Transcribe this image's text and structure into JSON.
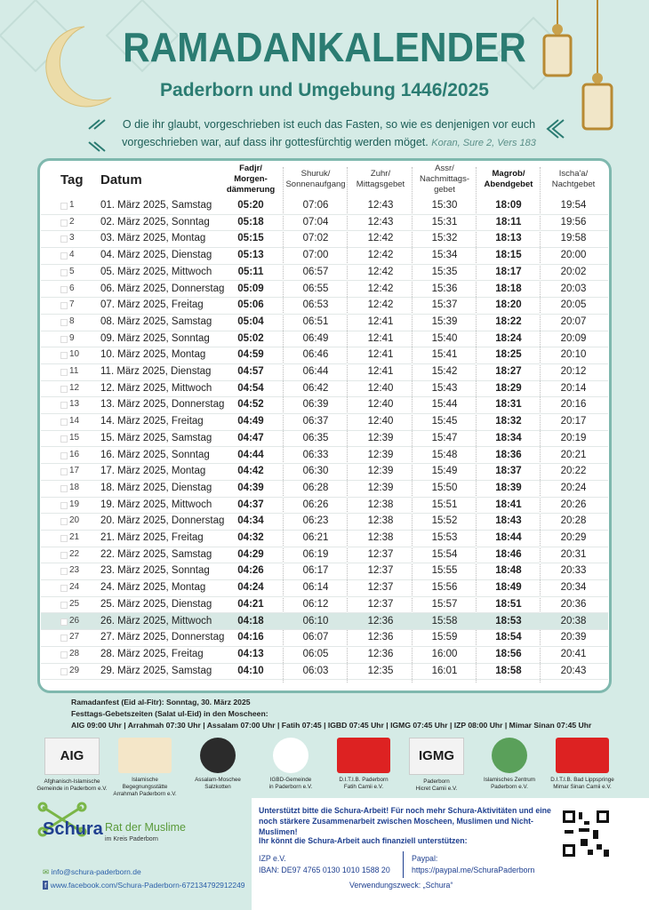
{
  "header": {
    "title": "RAMADANKALENDER",
    "subtitle": "Paderborn und Umgebung 1446/2025",
    "quote": "O die ihr glaubt, vorgeschrieben ist euch das Fasten, so wie es denjenigen vor euch vorgeschrieben war, auf dass ihr gottesfürchtig werden möget.",
    "quote_source": "Koran, Sure 2, Vers 183"
  },
  "table": {
    "columns": [
      "Tag",
      "Datum",
      "Fadjr/\nMorgen-\ndämmerung",
      "Shuruk/\nSonnenaufgang",
      "Zuhr/\nMittagsgebet",
      "Assr/\nNachmittags-\ngebet",
      "Magrob/\nAbendgebet",
      "Ischa'a/\nNachtgebet"
    ],
    "bold_columns": [
      2,
      6
    ],
    "highlighted_row": 26,
    "rows": [
      [
        "1",
        "01. März 2025, Samstag",
        "05:20",
        "07:06",
        "12:43",
        "15:30",
        "18:09",
        "19:54"
      ],
      [
        "2",
        "02. März 2025, Sonntag",
        "05:18",
        "07:04",
        "12:43",
        "15:31",
        "18:11",
        "19:56"
      ],
      [
        "3",
        "03. März 2025, Montag",
        "05:15",
        "07:02",
        "12:42",
        "15:32",
        "18:13",
        "19:58"
      ],
      [
        "4",
        "04. März 2025, Dienstag",
        "05:13",
        "07:00",
        "12:42",
        "15:34",
        "18:15",
        "20:00"
      ],
      [
        "5",
        "05. März 2025, Mittwoch",
        "05:11",
        "06:57",
        "12:42",
        "15:35",
        "18:17",
        "20:02"
      ],
      [
        "6",
        "06. März 2025, Donnerstag",
        "05:09",
        "06:55",
        "12:42",
        "15:36",
        "18:18",
        "20:03"
      ],
      [
        "7",
        "07. März 2025, Freitag",
        "05:06",
        "06:53",
        "12:42",
        "15:37",
        "18:20",
        "20:05"
      ],
      [
        "8",
        "08. März 2025, Samstag",
        "05:04",
        "06:51",
        "12:41",
        "15:39",
        "18:22",
        "20:07"
      ],
      [
        "9",
        "09. März 2025, Sonntag",
        "05:02",
        "06:49",
        "12:41",
        "15:40",
        "18:24",
        "20:09"
      ],
      [
        "10",
        "10. März 2025, Montag",
        "04:59",
        "06:46",
        "12:41",
        "15:41",
        "18:25",
        "20:10"
      ],
      [
        "11",
        "11. März 2025, Dienstag",
        "04:57",
        "06:44",
        "12:41",
        "15:42",
        "18:27",
        "20:12"
      ],
      [
        "12",
        "12. März 2025, Mittwoch",
        "04:54",
        "06:42",
        "12:40",
        "15:43",
        "18:29",
        "20:14"
      ],
      [
        "13",
        "13. März 2025, Donnerstag",
        "04:52",
        "06:39",
        "12:40",
        "15:44",
        "18:31",
        "20:16"
      ],
      [
        "14",
        "14. März 2025, Freitag",
        "04:49",
        "06:37",
        "12:40",
        "15:45",
        "18:32",
        "20:17"
      ],
      [
        "15",
        "15. März 2025, Samstag",
        "04:47",
        "06:35",
        "12:39",
        "15:47",
        "18:34",
        "20:19"
      ],
      [
        "16",
        "16. März 2025, Sonntag",
        "04:44",
        "06:33",
        "12:39",
        "15:48",
        "18:36",
        "20:21"
      ],
      [
        "17",
        "17. März 2025, Montag",
        "04:42",
        "06:30",
        "12:39",
        "15:49",
        "18:37",
        "20:22"
      ],
      [
        "18",
        "18. März 2025, Dienstag",
        "04:39",
        "06:28",
        "12:39",
        "15:50",
        "18:39",
        "20:24"
      ],
      [
        "19",
        "19. März 2025, Mittwoch",
        "04:37",
        "06:26",
        "12:38",
        "15:51",
        "18:41",
        "20:26"
      ],
      [
        "20",
        "20. März 2025, Donnerstag",
        "04:34",
        "06:23",
        "12:38",
        "15:52",
        "18:43",
        "20:28"
      ],
      [
        "21",
        "21. März 2025, Freitag",
        "04:32",
        "06:21",
        "12:38",
        "15:53",
        "18:44",
        "20:29"
      ],
      [
        "22",
        "22. März 2025, Samstag",
        "04:29",
        "06:19",
        "12:37",
        "15:54",
        "18:46",
        "20:31"
      ],
      [
        "23",
        "23. März 2025, Sonntag",
        "04:26",
        "06:17",
        "12:37",
        "15:55",
        "18:48",
        "20:33"
      ],
      [
        "24",
        "24. März 2025, Montag",
        "04:24",
        "06:14",
        "12:37",
        "15:56",
        "18:49",
        "20:34"
      ],
      [
        "25",
        "25. März 2025, Dienstag",
        "04:21",
        "06:12",
        "12:37",
        "15:57",
        "18:51",
        "20:36"
      ],
      [
        "26",
        "26. März 2025, Mittwoch",
        "04:18",
        "06:10",
        "12:36",
        "15:58",
        "18:53",
        "20:38"
      ],
      [
        "27",
        "27. März 2025, Donnerstag",
        "04:16",
        "06:07",
        "12:36",
        "15:59",
        "18:54",
        "20:39"
      ],
      [
        "28",
        "28. März 2025, Freitag",
        "04:13",
        "06:05",
        "12:36",
        "16:00",
        "18:56",
        "20:41"
      ],
      [
        "29",
        "29. März 2025, Samstag",
        "04:10",
        "06:03",
        "12:35",
        "16:01",
        "18:58",
        "20:43"
      ]
    ]
  },
  "eid": {
    "line1": "Ramadanfest (Eid al-Fitr): Sonntag, 30. März 2025",
    "line2": "Festtags-Gebetszeiten (Salat ul-Eid) in den Moscheen:",
    "times": "AIG 09:00 Uhr | Arrahmah 07:30 Uhr | Assalam 07:00 Uhr | Fatih 07:45 | IGBD 07:45 Uhr | IGMG 07:45 Uhr | IZP 08:00 Uhr | Mimar Sinan 07:45 Uhr"
  },
  "mosques": [
    {
      "logo": "AIG",
      "name": "Afghanisch-Islamische\nGemeinde in Paderborn e.V."
    },
    {
      "name": "Islamische Begegnungsstätte\nArrahmah Paderborn e.V."
    },
    {
      "name": "Assalam-Moschee\nSalzkotten"
    },
    {
      "name": "IGBD-Gemeinde\nin Paderborn e.V."
    },
    {
      "name": "D.I.T.I.B. Paderborn\nFatih Camii e.V."
    },
    {
      "logo": "IGMG",
      "name": "Paderborn\nHicret Camii e.V."
    },
    {
      "name": "Islamisches Zentrum\nPaderborn e.V."
    },
    {
      "name": "D.I.T.I.B. Bad Lippspringe\nMimar Sinan Camii e.V."
    }
  ],
  "schura": {
    "logo": "Schura",
    "tagline": "Rat der Muslime",
    "sub": "im Kreis Paderborn",
    "email": "info@schura-paderborn.de",
    "facebook": "www.facebook.com/Schura-Paderborn-672134792912249"
  },
  "support": {
    "text1": "Unterstützt bitte die Schura-Arbeit! Für noch mehr Schura-Aktivitäten und eine noch stärkere Zusammenarbeit zwischen Moscheen, Muslimen und Nicht-Muslimen!",
    "text2": "Ihr könnt die Schura-Arbeit auch finanziell unterstützen:",
    "bank_name": "IZP e.V.",
    "iban": "IBAN: DE97 4765 0130 1010 1588 20",
    "paypal_label": "Paypal:",
    "paypal_url": "https://paypal.me/SchuraPaderborn",
    "purpose": "Verwendungszweck: „Schura“"
  }
}
